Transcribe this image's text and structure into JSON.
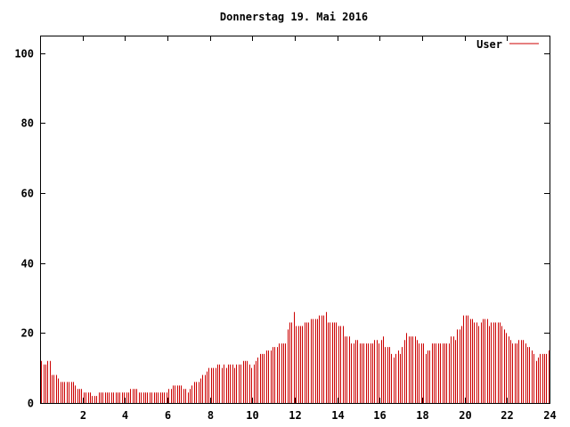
{
  "chart_data": {
    "type": "bar",
    "title": "Donnerstag 19. Mai 2016",
    "xlabel": "",
    "ylabel": "",
    "xlim": [
      0,
      24
    ],
    "ylim": [
      0,
      105
    ],
    "x_ticks": [
      2,
      4,
      6,
      8,
      10,
      12,
      14,
      16,
      18,
      20,
      22,
      24
    ],
    "y_ticks": [
      0,
      20,
      40,
      60,
      80,
      100
    ],
    "x_tick_labels": [
      "2",
      "4",
      "6",
      "8",
      "10",
      "12",
      "14",
      "16",
      "18",
      "20",
      "22",
      "24"
    ],
    "y_tick_labels": [
      "0",
      "20",
      "40",
      "60",
      "80",
      "100"
    ],
    "grid": false,
    "legend_position": "top-right",
    "series": [
      {
        "name": "User",
        "color": "#cc0000",
        "interval_hours": 0.0833333,
        "values": [
          12,
          11,
          11,
          12,
          12,
          8,
          8,
          8,
          7,
          6,
          6,
          6,
          6,
          6,
          6,
          6,
          5,
          4,
          4,
          4,
          3,
          3,
          3,
          3,
          2,
          2,
          2,
          3,
          3,
          3,
          3,
          3,
          3,
          3,
          3,
          3,
          3,
          3,
          3,
          3,
          3,
          3,
          4,
          4,
          4,
          4,
          3,
          3,
          3,
          3,
          3,
          3,
          3,
          3,
          3,
          3,
          3,
          3,
          3,
          3,
          4,
          4,
          5,
          5,
          5,
          5,
          5,
          4,
          4,
          3,
          4,
          5,
          6,
          6,
          6,
          7,
          8,
          8,
          9,
          10,
          10,
          10,
          10,
          11,
          11,
          10,
          11,
          10,
          11,
          11,
          11,
          10,
          11,
          11,
          11,
          12,
          12,
          12,
          11,
          10,
          11,
          12,
          13,
          14,
          14,
          14,
          15,
          15,
          15,
          16,
          16,
          16,
          17,
          17,
          17,
          17,
          21,
          23,
          23,
          26,
          22,
          22,
          22,
          22,
          23,
          23,
          23,
          24,
          24,
          24,
          24,
          25,
          25,
          25,
          26,
          23,
          23,
          23,
          23,
          23,
          22,
          22,
          22,
          19,
          19,
          19,
          17,
          17,
          18,
          18,
          17,
          17,
          17,
          17,
          17,
          17,
          17,
          18,
          18,
          17,
          18,
          19,
          16,
          16,
          16,
          14,
          13,
          14,
          15,
          14,
          16,
          18,
          20,
          19,
          19,
          19,
          19,
          18,
          17,
          17,
          17,
          14,
          15,
          15,
          17,
          17,
          17,
          17,
          17,
          17,
          17,
          17,
          17,
          19,
          19,
          18,
          21,
          21,
          22,
          25,
          25,
          25,
          24,
          24,
          23,
          23,
          22,
          23,
          24,
          24,
          24,
          22,
          23,
          23,
          23,
          23,
          23,
          22,
          21,
          20,
          19,
          18,
          17,
          17,
          17,
          18,
          18,
          18,
          17,
          16,
          16,
          15,
          14,
          12,
          13,
          14,
          14,
          14,
          14,
          15
        ]
      }
    ]
  }
}
